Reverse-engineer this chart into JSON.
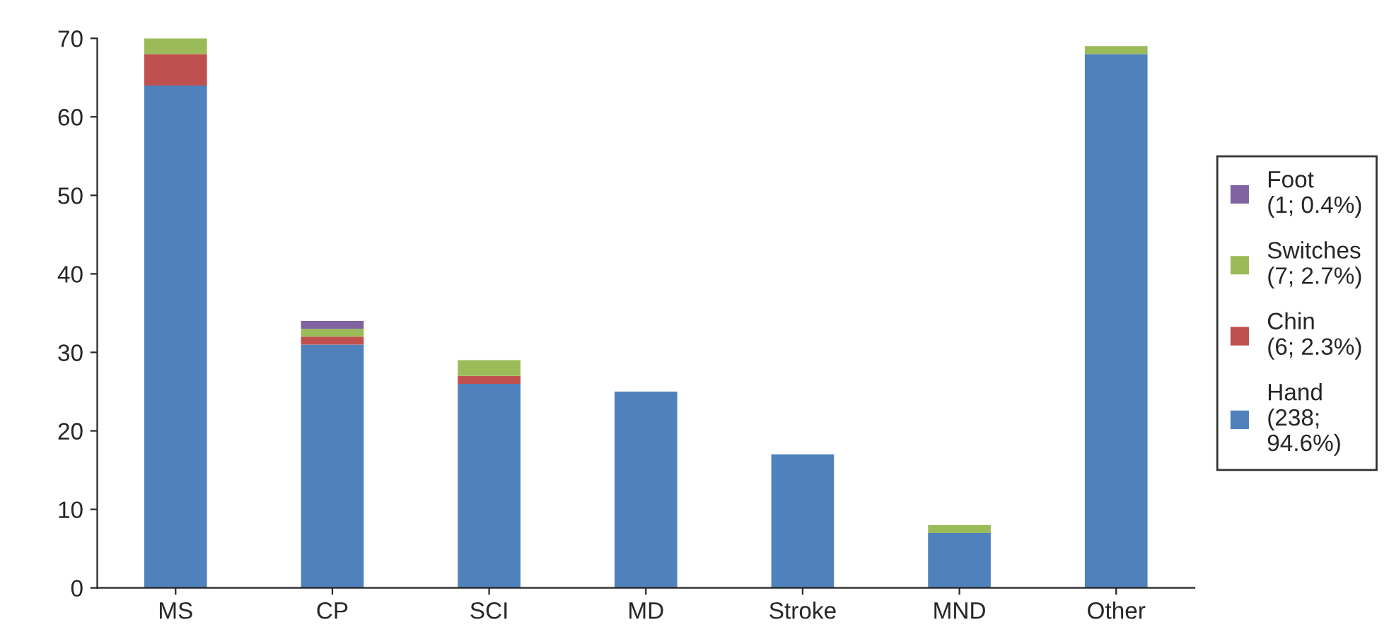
{
  "chart_data": {
    "type": "bar",
    "stacked": true,
    "categories": [
      "MS",
      "CP",
      "SCI",
      "MD",
      "Stroke",
      "MND",
      "Other"
    ],
    "series": [
      {
        "name": "Hand\n(238;\n94.6%)",
        "color": "#4f81bd",
        "values": [
          64,
          31,
          26,
          25,
          17,
          7,
          68
        ]
      },
      {
        "name": "Chin\n(6; 2.3%)",
        "color": "#c0504d",
        "values": [
          4,
          1,
          1,
          null,
          null,
          null,
          null
        ]
      },
      {
        "name": "Switches\n(7; 2.7%)",
        "color": "#9bbb59",
        "values": [
          2,
          1,
          2,
          null,
          null,
          1,
          1
        ]
      },
      {
        "name": "Foot\n(1; 0.4%)",
        "color": "#8064a2",
        "values": [
          null,
          1,
          null,
          null,
          null,
          null,
          null
        ]
      }
    ],
    "ylim": [
      0,
      70
    ],
    "yticks": [
      0,
      10,
      20,
      30,
      40,
      50,
      60,
      70
    ],
    "grid": false,
    "legend": "right"
  }
}
